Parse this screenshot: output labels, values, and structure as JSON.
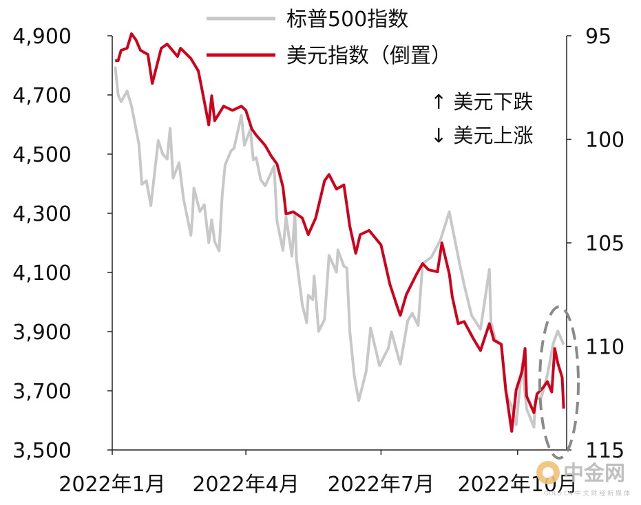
{
  "chart_data": {
    "type": "line",
    "legend": {
      "position": "top",
      "entries": [
        "标普500指数",
        "美元指数（倒置）"
      ]
    },
    "annotations": [
      "↑ 美元下跌",
      "↓ 美元上涨"
    ],
    "x_ticks": [
      "2022年1月",
      "2022年4月",
      "2022年7月",
      "2022年10月"
    ],
    "left_axis": {
      "ylim": [
        3500,
        4900
      ],
      "ticks": [
        "4,900",
        "4,700",
        "4,500",
        "4,300",
        "4,100",
        "3,900",
        "3,700",
        "3,500"
      ]
    },
    "right_axis": {
      "inverted": true,
      "ylim": [
        95,
        115
      ],
      "ticks": [
        "95",
        "100",
        "105",
        "110",
        "115"
      ]
    },
    "grid": false,
    "highlight": "dashed ellipse around the latest data",
    "series": [
      {
        "name": "标普500指数",
        "axis": "left",
        "color": "#c8c8c8",
        "points": [
          [
            "2022-01-03",
            4796
          ],
          [
            "2022-01-05",
            4700
          ],
          [
            "2022-01-07",
            4677
          ],
          [
            "2022-01-11",
            4713
          ],
          [
            "2022-01-14",
            4663
          ],
          [
            "2022-01-19",
            4533
          ],
          [
            "2022-01-21",
            4398
          ],
          [
            "2022-01-24",
            4410
          ],
          [
            "2022-01-27",
            4326
          ],
          [
            "2022-02-01",
            4546
          ],
          [
            "2022-02-04",
            4500
          ],
          [
            "2022-02-07",
            4483
          ],
          [
            "2022-02-09",
            4587
          ],
          [
            "2022-02-11",
            4419
          ],
          [
            "2022-02-15",
            4471
          ],
          [
            "2022-02-18",
            4349
          ],
          [
            "2022-02-23",
            4226
          ],
          [
            "2022-02-24",
            4288
          ],
          [
            "2022-02-25",
            4385
          ],
          [
            "2022-03-01",
            4306
          ],
          [
            "2022-03-04",
            4329
          ],
          [
            "2022-03-07",
            4201
          ],
          [
            "2022-03-09",
            4278
          ],
          [
            "2022-03-11",
            4204
          ],
          [
            "2022-03-14",
            4173
          ],
          [
            "2022-03-16",
            4357
          ],
          [
            "2022-03-18",
            4463
          ],
          [
            "2022-03-22",
            4511
          ],
          [
            "2022-03-24",
            4520
          ],
          [
            "2022-03-29",
            4631
          ],
          [
            "2022-03-31",
            4530
          ],
          [
            "2022-04-04",
            4583
          ],
          [
            "2022-04-06",
            4481
          ],
          [
            "2022-04-08",
            4488
          ],
          [
            "2022-04-11",
            4413
          ],
          [
            "2022-04-14",
            4393
          ],
          [
            "2022-04-20",
            4459
          ],
          [
            "2022-04-22",
            4272
          ],
          [
            "2022-04-26",
            4175
          ],
          [
            "2022-04-28",
            4287
          ],
          [
            "2022-05-02",
            4155
          ],
          [
            "2022-05-04",
            4300
          ],
          [
            "2022-05-05",
            4147
          ],
          [
            "2022-05-09",
            3991
          ],
          [
            "2022-05-12",
            3930
          ],
          [
            "2022-05-13",
            4023
          ],
          [
            "2022-05-16",
            4008
          ],
          [
            "2022-05-17",
            4088
          ],
          [
            "2022-05-20",
            3901
          ],
          [
            "2022-05-24",
            3941
          ],
          [
            "2022-05-27",
            4158
          ],
          [
            "2022-06-01",
            4101
          ],
          [
            "2022-06-02",
            4176
          ],
          [
            "2022-06-06",
            4121
          ],
          [
            "2022-06-08",
            4115
          ],
          [
            "2022-06-10",
            3901
          ],
          [
            "2022-06-13",
            3750
          ],
          [
            "2022-06-16",
            3667
          ],
          [
            "2022-06-21",
            3765
          ],
          [
            "2022-06-24",
            3912
          ],
          [
            "2022-06-30",
            3785
          ],
          [
            "2022-07-06",
            3845
          ],
          [
            "2022-07-08",
            3899
          ],
          [
            "2022-07-14",
            3790
          ],
          [
            "2022-07-19",
            3937
          ],
          [
            "2022-07-22",
            3962
          ],
          [
            "2022-07-26",
            3921
          ],
          [
            "2022-07-29",
            4130
          ],
          [
            "2022-08-04",
            4152
          ],
          [
            "2022-08-10",
            4210
          ],
          [
            "2022-08-16",
            4305
          ],
          [
            "2022-08-19",
            4228
          ],
          [
            "2022-08-23",
            4128
          ],
          [
            "2022-08-26",
            4058
          ],
          [
            "2022-08-31",
            3955
          ],
          [
            "2022-09-06",
            3908
          ],
          [
            "2022-09-12",
            4110
          ],
          [
            "2022-09-13",
            3932
          ],
          [
            "2022-09-16",
            3873
          ],
          [
            "2022-09-20",
            3856
          ],
          [
            "2022-09-23",
            3693
          ],
          [
            "2022-09-27",
            3647
          ],
          [
            "2022-09-30",
            3586
          ],
          [
            "2022-10-04",
            3791
          ],
          [
            "2022-10-07",
            3640
          ],
          [
            "2022-10-12",
            3577
          ],
          [
            "2022-10-13",
            3670
          ],
          [
            "2022-10-17",
            3678
          ],
          [
            "2022-10-21",
            3753
          ],
          [
            "2022-10-25",
            3860
          ],
          [
            "2022-10-28",
            3902
          ],
          [
            "2022-11-01",
            3856
          ]
        ]
      },
      {
        "name": "美元指数（倒置）",
        "axis": "right",
        "color": "#d0021b",
        "points": [
          [
            "2022-01-03",
            96.2
          ],
          [
            "2022-01-05",
            96.2
          ],
          [
            "2022-01-07",
            95.7
          ],
          [
            "2022-01-11",
            95.6
          ],
          [
            "2022-01-14",
            94.9
          ],
          [
            "2022-01-17",
            95.2
          ],
          [
            "2022-01-20",
            95.7
          ],
          [
            "2022-01-25",
            95.9
          ],
          [
            "2022-01-28",
            97.3
          ],
          [
            "2022-02-03",
            95.6
          ],
          [
            "2022-02-07",
            95.4
          ],
          [
            "2022-02-14",
            96.0
          ],
          [
            "2022-02-16",
            95.6
          ],
          [
            "2022-02-23",
            96.1
          ],
          [
            "2022-02-28",
            96.7
          ],
          [
            "2022-03-03",
            97.8
          ],
          [
            "2022-03-07",
            99.3
          ],
          [
            "2022-03-09",
            97.9
          ],
          [
            "2022-03-11",
            99.1
          ],
          [
            "2022-03-17",
            98.4
          ],
          [
            "2022-03-23",
            98.6
          ],
          [
            "2022-03-29",
            98.4
          ],
          [
            "2022-04-01",
            98.6
          ],
          [
            "2022-04-05",
            99.5
          ],
          [
            "2022-04-08",
            99.8
          ],
          [
            "2022-04-14",
            100.3
          ],
          [
            "2022-04-18",
            100.8
          ],
          [
            "2022-04-22",
            101.2
          ],
          [
            "2022-04-26",
            102.3
          ],
          [
            "2022-04-28",
            103.6
          ],
          [
            "2022-05-03",
            103.5
          ],
          [
            "2022-05-09",
            103.8
          ],
          [
            "2022-05-13",
            104.6
          ],
          [
            "2022-05-18",
            103.8
          ],
          [
            "2022-05-24",
            102.0
          ],
          [
            "2022-05-27",
            101.7
          ],
          [
            "2022-06-01",
            102.4
          ],
          [
            "2022-06-06",
            102.2
          ],
          [
            "2022-06-10",
            104.2
          ],
          [
            "2022-06-14",
            105.5
          ],
          [
            "2022-06-17",
            104.6
          ],
          [
            "2022-06-23",
            104.4
          ],
          [
            "2022-07-01",
            105.1
          ],
          [
            "2022-07-07",
            107.0
          ],
          [
            "2022-07-12",
            108.1
          ],
          [
            "2022-07-14",
            108.5
          ],
          [
            "2022-07-18",
            107.5
          ],
          [
            "2022-07-25",
            106.5
          ],
          [
            "2022-07-29",
            106.0
          ],
          [
            "2022-08-02",
            106.3
          ],
          [
            "2022-08-08",
            106.4
          ],
          [
            "2022-08-11",
            105.0
          ],
          [
            "2022-08-16",
            106.5
          ],
          [
            "2022-08-18",
            107.6
          ],
          [
            "2022-08-22",
            108.9
          ],
          [
            "2022-08-26",
            108.8
          ],
          [
            "2022-09-01",
            109.6
          ],
          [
            "2022-09-06",
            110.2
          ],
          [
            "2022-09-12",
            108.9
          ],
          [
            "2022-09-15",
            109.7
          ],
          [
            "2022-09-20",
            109.9
          ],
          [
            "2022-09-23",
            112.1
          ],
          [
            "2022-09-27",
            114.1
          ],
          [
            "2022-09-30",
            112.1
          ],
          [
            "2022-10-04",
            111.2
          ],
          [
            "2022-10-06",
            110.1
          ],
          [
            "2022-10-07",
            112.4
          ],
          [
            "2022-10-12",
            113.2
          ],
          [
            "2022-10-14",
            112.3
          ],
          [
            "2022-10-18",
            112.0
          ],
          [
            "2022-10-21",
            111.7
          ],
          [
            "2022-10-24",
            112.2
          ],
          [
            "2022-10-26",
            110.1
          ],
          [
            "2022-10-28",
            110.8
          ],
          [
            "2022-10-31",
            111.5
          ],
          [
            "2022-11-01",
            113.0
          ]
        ]
      }
    ]
  },
  "watermark": {
    "logo_text": "中金网",
    "sub_text": "GOLD.CN  中 文 财 经 新 媒 体"
  }
}
